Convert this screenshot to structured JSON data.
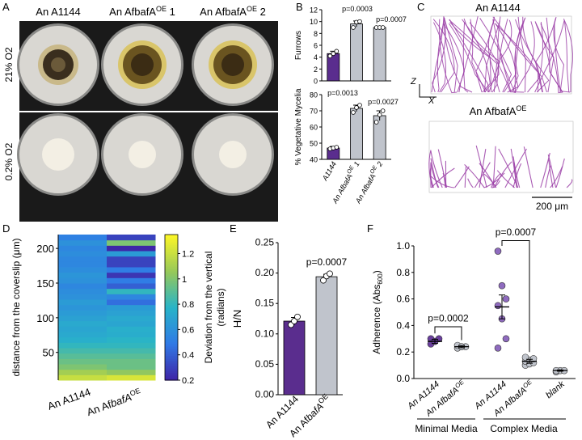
{
  "panel_labels": [
    "A",
    "B",
    "C",
    "D",
    "E",
    "F"
  ],
  "panelA": {
    "strains": [
      {
        "name": "An A1144",
        "base": "An A1144",
        "sup": ""
      },
      {
        "name": "An AfbafA OE 1",
        "base": "An AfbafA",
        "sup": "OE",
        "suffix": " 1"
      },
      {
        "name": "An AfbafA OE 2",
        "base": "An AfbafA",
        "sup": "OE",
        "suffix": " 2"
      }
    ],
    "row_labels": [
      "21% O2",
      "0.2% O2"
    ],
    "colors": {
      "plate_bg": "#1a1a1a",
      "agar": "#d9d7d2",
      "colony_normoxia": "#b89a4a",
      "colony_hypoxia": "#f3efe4"
    }
  },
  "chart_data": [
    {
      "id": "B-top",
      "type": "bar",
      "categories": [
        "A1144",
        "An AfbafA OE 1",
        "An AfbafA OE 2"
      ],
      "values": [
        4.6,
        9.6,
        9.0
      ],
      "errors": [
        0.4,
        0.5,
        0.1
      ],
      "points": [
        [
          4.2,
          4.6,
          5.0
        ],
        [
          9.0,
          9.9,
          10.0
        ],
        [
          9.0,
          9.0,
          9.0
        ]
      ],
      "ylabel": "Furrows",
      "ylim": [
        0,
        12
      ],
      "yticks": [
        0,
        2,
        4,
        6,
        8,
        10,
        12
      ],
      "colors": [
        "#5a2d8e",
        "#c0c4cc",
        "#c0c4cc"
      ],
      "annotations": [
        "p=0.0003",
        "p=0.0007"
      ]
    },
    {
      "id": "B-bottom",
      "type": "bar",
      "categories": [
        "A1144",
        "An AfbafA OE 1",
        "An AfbafA OE 2"
      ],
      "values": [
        47,
        71.5,
        67
      ],
      "errors": [
        1,
        2,
        3
      ],
      "points": [
        [
          46.5,
          47,
          47.5
        ],
        [
          69,
          72,
          73.5
        ],
        [
          63,
          67.5,
          70
        ]
      ],
      "ylabel": "% Vegetative Mycelia",
      "ylim": [
        40,
        80
      ],
      "yticks": [
        40,
        50,
        60,
        70,
        80
      ],
      "colors": [
        "#5a2d8e",
        "#c0c4cc",
        "#c0c4cc"
      ],
      "annotations": [
        "p=0.0013",
        "p=0.0027"
      ]
    },
    {
      "id": "D",
      "type": "heatmap",
      "columns": [
        "An A1144",
        "An AfbafA OE"
      ],
      "ylabel": "distance from the coverslip (μm)",
      "yticks": [
        50,
        100,
        150,
        200
      ],
      "ylim": [
        10,
        220
      ],
      "colorbar_label": "Deviation from the vertical (radians)",
      "colorbar_ticks": [
        0.2,
        0.4,
        0.6,
        0.8,
        1,
        1.2
      ],
      "colorbar_range": [
        0.2,
        1.35
      ],
      "values_col1": [
        1.2,
        1.1,
        1.0,
        0.95,
        0.9,
        0.85,
        0.8,
        0.75,
        0.72,
        0.7,
        0.72,
        0.68,
        0.65,
        0.62,
        0.65,
        0.6,
        0.58,
        0.55,
        0.6,
        0.62,
        0.58,
        0.55,
        0.55,
        0.58,
        0.55,
        0.6,
        0.52
      ],
      "values_col2": [
        1.25,
        1.05,
        0.95,
        0.95,
        0.9,
        0.85,
        0.8,
        0.78,
        0.74,
        0.75,
        0.7,
        0.72,
        0.68,
        0.65,
        0.45,
        0.55,
        0.8,
        0.4,
        0.5,
        0.25,
        0.5,
        0.3,
        0.3,
        0.65,
        0.2,
        1.0,
        0.3
      ]
    },
    {
      "id": "E",
      "type": "bar",
      "categories": [
        "An A1144",
        "An AfbafA OE"
      ],
      "values": [
        0.121,
        0.194
      ],
      "errors": [
        0.006,
        0.004
      ],
      "points": [
        [
          0.115,
          0.121,
          0.128
        ],
        [
          0.188,
          0.195,
          0.199
        ]
      ],
      "ylabel": "H/N",
      "ylim": [
        0,
        0.25
      ],
      "yticks": [
        0.0,
        0.05,
        0.1,
        0.15,
        0.2,
        0.25
      ],
      "ytick_labels": [
        "0.00",
        "0.05",
        "0.10",
        "0.15",
        "0.20",
        "0.25"
      ],
      "colors": [
        "#5a2d8e",
        "#c0c4cc"
      ],
      "annotations": [
        "p=0.0007"
      ]
    },
    {
      "id": "F",
      "type": "scatter",
      "categories": [
        "An A1144",
        "An AfbafA OE",
        "An A1144",
        "An AfbafA OE",
        "blank"
      ],
      "groups": [
        "Minimal Media",
        "Complex Media"
      ],
      "means": [
        0.28,
        0.24,
        0.54,
        0.13,
        0.06
      ],
      "errors": [
        0.015,
        0.008,
        0.09,
        0.015,
        0.005
      ],
      "points": [
        [
          0.26,
          0.28,
          0.3,
          0.3,
          0.28
        ],
        [
          0.23,
          0.24,
          0.24,
          0.25,
          0.24
        ],
        [
          0.96,
          0.7,
          0.6,
          0.55,
          0.45,
          0.3,
          0.23
        ],
        [
          0.1,
          0.11,
          0.12,
          0.13,
          0.14,
          0.15,
          0.16
        ],
        [
          0.05,
          0.06,
          0.06,
          0.06
        ]
      ],
      "ylabel": "Adherence (Abs600)",
      "ylim": [
        0,
        1.0
      ],
      "yticks": [
        0.0,
        0.2,
        0.4,
        0.6,
        0.8,
        1.0
      ],
      "ytick_labels": [
        "0.0",
        "0.2",
        "0.4",
        "0.6",
        "0.8",
        "1.0"
      ],
      "colors": [
        "#6a3f9e",
        "#c0c4cc",
        "#8f6bbf",
        "#c0c4cc",
        "#c0c4cc"
      ],
      "annotations": [
        "p=0.0002",
        "p=0.0007"
      ]
    }
  ],
  "panelC": {
    "titles": [
      {
        "base": "An A1144",
        "sup": ""
      },
      {
        "base": "An AfbafA",
        "sup": "OE"
      }
    ],
    "scale_label": "200 μm",
    "axis_labels": [
      "Z",
      "X"
    ],
    "colors": {
      "stroke": "#9b3fa7"
    }
  }
}
